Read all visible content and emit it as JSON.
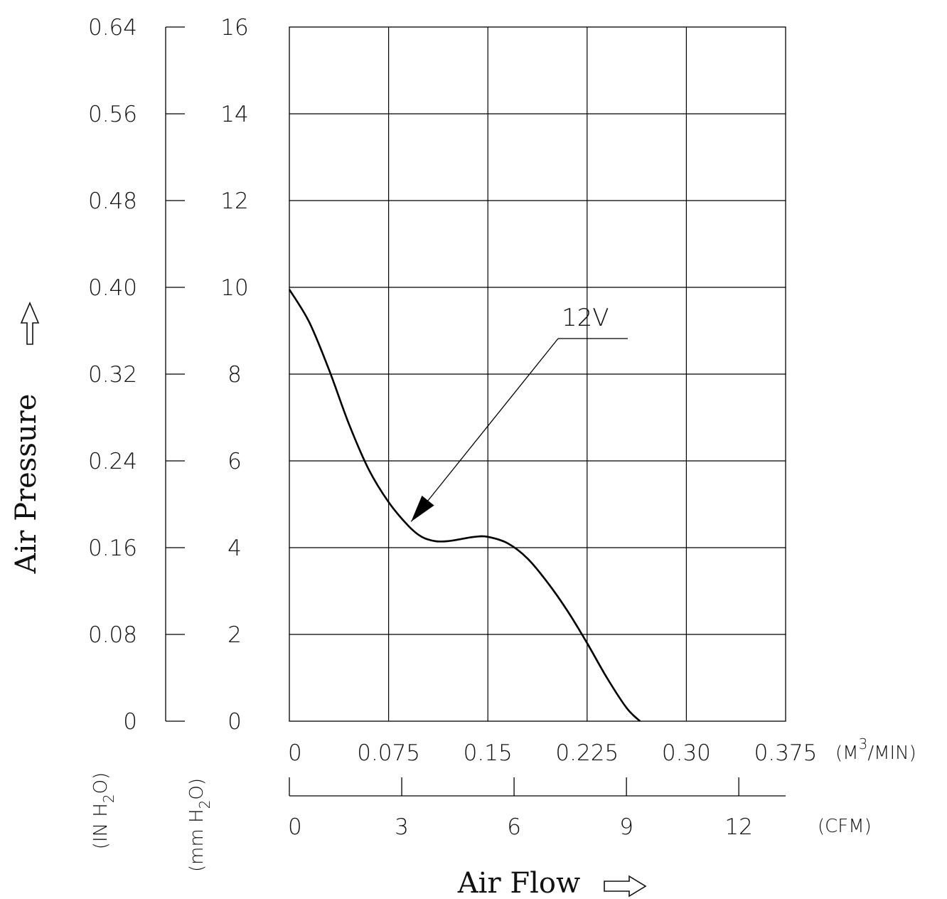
{
  "chart_data": {
    "type": "line",
    "xlabel": "Air Flow",
    "ylabel": "Air Pressure",
    "x_primary": {
      "unit": "(M3/MIN)",
      "unit_base": "(M",
      "unit_sup": "3",
      "unit_rest": "/MIN)",
      "ticks": [
        "0",
        "0.075",
        "0.15",
        "0.225",
        "0.30",
        "0.375"
      ],
      "range": [
        0,
        0.375
      ]
    },
    "x_secondary": {
      "unit": "(CFM)",
      "ticks": [
        "0",
        "3",
        "6",
        "9",
        "12"
      ],
      "tick_values": [
        0,
        3,
        6,
        9,
        12
      ]
    },
    "y_primary": {
      "unit": "(mm H2O)",
      "unit_pre": "(mm H",
      "unit_sub": "2",
      "unit_post": "O)",
      "ticks": [
        "0",
        "2",
        "4",
        "6",
        "8",
        "10",
        "12",
        "14",
        "16"
      ],
      "range": [
        0,
        16
      ]
    },
    "y_secondary": {
      "unit": "(IN H2O)",
      "unit_pre": "(IN H",
      "unit_sub": "2",
      "unit_post": "O)",
      "ticks": [
        "0",
        "0.08",
        "0.16",
        "0.24",
        "0.32",
        "0.40",
        "0.48",
        "0.56",
        "0.64"
      ],
      "range": [
        0,
        0.64
      ]
    },
    "grid": true,
    "series": [
      {
        "name": "12V",
        "x": [
          0,
          0.015,
          0.03,
          0.045,
          0.06,
          0.075,
          0.09,
          0.1,
          0.11,
          0.12,
          0.13,
          0.14,
          0.15,
          0.165,
          0.18,
          0.195,
          0.21,
          0.225,
          0.24,
          0.255,
          0.265
        ],
        "y": [
          9.95,
          9.2,
          8.1,
          6.85,
          5.8,
          5.05,
          4.5,
          4.25,
          4.15,
          4.15,
          4.2,
          4.25,
          4.25,
          4.1,
          3.75,
          3.2,
          2.55,
          1.8,
          1.0,
          0.3,
          0
        ]
      }
    ],
    "annotation": {
      "text": "12V",
      "points_to": [
        0.092,
        4.6
      ]
    },
    "colors": {
      "line": "#000000",
      "grid": "#000000",
      "background": "#ffffff"
    }
  }
}
